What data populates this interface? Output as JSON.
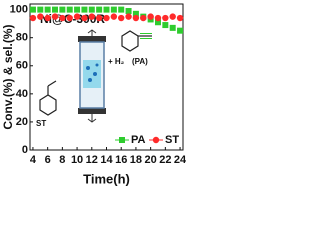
{
  "chart_data": {
    "type": "scatter",
    "title": "Ni@C-300R",
    "x_label": "Time(h)",
    "y_label": "Conv.(%) & sel.(%)",
    "annotations": [
      "(PA)",
      "+ H₂",
      "ST"
    ],
    "x": [
      4,
      5,
      6,
      7,
      8,
      9,
      10,
      11,
      12,
      13,
      14,
      15,
      16,
      17,
      18,
      19,
      20,
      21,
      22,
      23,
      24
    ],
    "series": [
      {
        "name": "PA",
        "color": "#2ecc2e",
        "marker": "square",
        "values": [
          100,
          100,
          100,
          100,
          100,
          100,
          100,
          100,
          100,
          100,
          100,
          100,
          100,
          99,
          97,
          95,
          93,
          91,
          89,
          87,
          85
        ]
      },
      {
        "name": "ST",
        "color": "#ff2a2a",
        "marker": "circle",
        "values": [
          94,
          95,
          94,
          95,
          94,
          94,
          95,
          94,
          95,
          94,
          94,
          95,
          94,
          95,
          94,
          94,
          95,
          94,
          94,
          95,
          94
        ]
      }
    ],
    "xlim": [
      3.6,
      24.4
    ],
    "ylim": [
      0,
      104
    ],
    "xticks": [
      4,
      6,
      8,
      10,
      12,
      14,
      16,
      18,
      20,
      22,
      24
    ],
    "yticks": [
      0,
      20,
      40,
      60,
      80,
      100
    ],
    "legend": "lower-right"
  }
}
